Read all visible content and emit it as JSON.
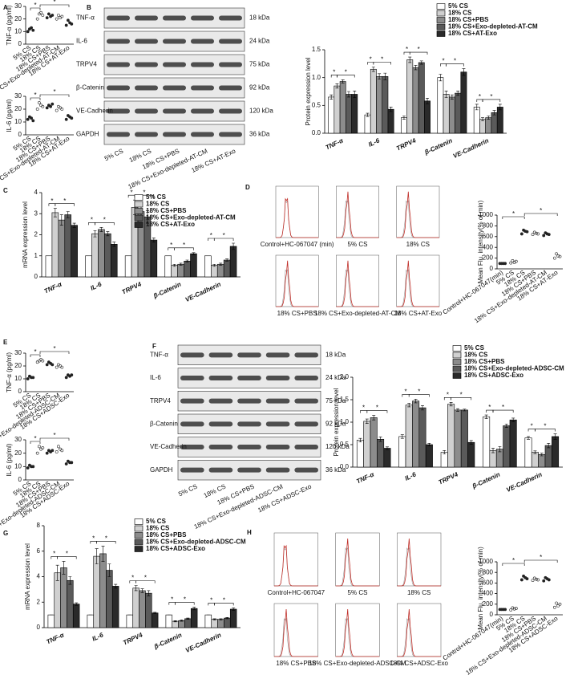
{
  "chart_data": [
    {
      "type": "dot",
      "panel": "A",
      "y_label": "TNF-α (pg/ml)",
      "categories": [
        "5% CS",
        "18% CS",
        "18% CS+PBS",
        "18% CS+Exo-depleted-AT-CM",
        "18% CS+AT-Exo"
      ],
      "points": [
        [
          10,
          12,
          13,
          11
        ],
        [
          20,
          24,
          25,
          23
        ],
        [
          21,
          24,
          22,
          23
        ],
        [
          20,
          23,
          21,
          22
        ],
        [
          15,
          19,
          17,
          16
        ]
      ],
      "color": "#222222",
      "ylim": [
        0,
        30
      ],
      "yticks": [
        0,
        10,
        20,
        30
      ],
      "significance": "*"
    },
    {
      "type": "dot",
      "y_label": "IL-6 (pg/ml)",
      "categories": [
        "5% CS",
        "18% CS",
        "18% CS+PBS",
        "18% CS+Exo-depleted-AT-CM",
        "18% CS+AT-Exo"
      ],
      "points": [
        [
          12,
          14,
          13,
          11
        ],
        [
          20,
          25,
          23,
          22
        ],
        [
          21,
          23,
          22,
          24
        ],
        [
          19,
          22,
          21,
          20
        ],
        [
          12,
          15,
          14,
          13
        ]
      ],
      "color": "#222222",
      "ylim": [
        0,
        30
      ],
      "yticks": [
        0,
        10,
        20,
        30
      ],
      "significance": "*"
    },
    {
      "type": "blot",
      "panel": "B",
      "rows": [
        {
          "name": "TNF-α",
          "kda": "18 kDa"
        },
        {
          "name": "IL-6",
          "kda": "24 kDa"
        },
        {
          "name": "TRPV4",
          "kda": "75 kDa"
        },
        {
          "name": "β-Catenin",
          "kda": "92 kDa"
        },
        {
          "name": "VE-Cadherin",
          "kda": "120 kDa"
        },
        {
          "name": "GAPDH",
          "kda": "36 kDa"
        }
      ],
      "lanes": [
        "5% CS",
        "18% CS",
        "18% CS+PBS",
        "18% CS+Exo-depleted-AT-CM",
        "18% CS+AT-Exo"
      ]
    },
    {
      "type": "bar",
      "y_label": "Protein expression level",
      "categories": [
        "TNF-α",
        "IL-6",
        "TRPV4",
        "β-Catenin",
        "VE-Cadherin"
      ],
      "series": [
        {
          "name": "5% CS",
          "color": "#ffffff",
          "values": [
            0.65,
            0.33,
            0.28,
            1.0,
            0.47
          ],
          "errors": [
            0.04,
            0.03,
            0.03,
            0.06,
            0.05
          ]
        },
        {
          "name": "18% CS",
          "color": "#d0d0d0",
          "values": [
            0.85,
            1.15,
            1.32,
            0.7,
            0.25
          ],
          "errors": [
            0.04,
            0.04,
            0.05,
            0.06,
            0.03
          ]
        },
        {
          "name": "18% CS+PBS",
          "color": "#8c8c8c",
          "values": [
            0.93,
            1.02,
            1.18,
            0.65,
            0.28
          ],
          "errors": [
            0.03,
            0.05,
            0.04,
            0.04,
            0.03
          ]
        },
        {
          "name": "18% CS+Exo-depleted-AT-CM",
          "color": "#5a5a5a",
          "values": [
            0.7,
            1.02,
            1.27,
            0.72,
            0.37
          ],
          "errors": [
            0.05,
            0.06,
            0.03,
            0.04,
            0.04
          ]
        },
        {
          "name": "18% CS+AT-Exo",
          "color": "#2a2a2a",
          "values": [
            0.7,
            0.43,
            0.58,
            1.1,
            0.47
          ],
          "errors": [
            0.06,
            0.04,
            0.05,
            0.06,
            0.05
          ]
        }
      ],
      "ylim": [
        0,
        1.5
      ],
      "yticks": [
        {
          "value": 0,
          "label": "0.0"
        },
        {
          "value": 0.5,
          "label": "0.5"
        },
        {
          "value": 1,
          "label": "1.0"
        },
        {
          "value": 1.5,
          "label": "1.5"
        }
      ],
      "significance": "*"
    },
    {
      "type": "bar",
      "panel": "C",
      "y_label": "mRNA expression level",
      "categories": [
        "TNF-α",
        "IL-6",
        "TRPV4",
        "β-Catenin",
        "VE-Cadherin"
      ],
      "series": [
        {
          "name": "5% CS",
          "color": "#ffffff",
          "values": [
            1,
            1,
            1,
            1,
            1
          ],
          "errors": [
            0,
            0,
            0,
            0,
            0
          ]
        },
        {
          "name": "18% CS",
          "color": "#d0d0d0",
          "values": [
            3.05,
            2.05,
            3.3,
            0.55,
            0.55
          ],
          "errors": [
            0.2,
            0.15,
            0.35,
            0.05,
            0.05
          ]
        },
        {
          "name": "18% CS+PBS",
          "color": "#8c8c8c",
          "values": [
            2.7,
            2.25,
            3.1,
            0.6,
            0.6
          ],
          "errors": [
            0.25,
            0.1,
            0.3,
            0.05,
            0.05
          ]
        },
        {
          "name": "18% CS+Exo-depleted-AT-CM",
          "color": "#5a5a5a",
          "values": [
            2.95,
            2.05,
            2.85,
            0.75,
            0.8
          ],
          "errors": [
            0.15,
            0.1,
            0.3,
            0.05,
            0.05
          ]
        },
        {
          "name": "18% CS+AT-Exo",
          "color": "#2a2a2a",
          "values": [
            2.45,
            1.55,
            1.75,
            1.1,
            1.45
          ],
          "errors": [
            0.1,
            0.1,
            0.1,
            0.05,
            0.15
          ]
        }
      ],
      "ylim": [
        0,
        4
      ],
      "yticks": [
        0,
        1,
        2,
        3,
        4
      ],
      "significance": "*"
    },
    {
      "type": "flow",
      "panel": "D",
      "labels": [
        "Control+HC-067047 (min)",
        "5% CS",
        "18% CS",
        "18% CS+PBS",
        "18% CS+Exo-depleted-AT-CM",
        "18% CS+AT-Exo"
      ]
    },
    {
      "type": "dot",
      "y_label": "Mean Flu. intensity(% of min)",
      "categories": [
        "Control+HC-067047(min)",
        "5% CS",
        "18% CS",
        "18% CS+PBS",
        "18% CS+Exo-depleted-AT-CM",
        "18% CS+AT-Exo"
      ],
      "points": [
        [
          100,
          100,
          100,
          100
        ],
        [
          110,
          150,
          120,
          140
        ],
        [
          650,
          720,
          700,
          690
        ],
        [
          640,
          680,
          660,
          650
        ],
        [
          620,
          670,
          650,
          640
        ],
        [
          200,
          280,
          240,
          230
        ]
      ],
      "color": "#222222",
      "ylim": [
        0,
        1000
      ],
      "yticks": [
        0,
        200,
        400,
        600,
        800,
        1000
      ],
      "significance": "*"
    },
    {
      "type": "dot",
      "panel": "E",
      "y_label": "TNF-α (pg/ml)",
      "categories": [
        "5% CS",
        "18% CS",
        "18% CS+PBS",
        "18% CS+Exo-depleted-ADSC-CM",
        "18% CS+ADSC-Exo"
      ],
      "points": [
        [
          10,
          12,
          11,
          11
        ],
        [
          23,
          24,
          25,
          24
        ],
        [
          21,
          23,
          22,
          21
        ],
        [
          19,
          21,
          20,
          19
        ],
        [
          11,
          13,
          12,
          13
        ]
      ],
      "color": "#222222",
      "ylim": [
        0,
        30
      ],
      "yticks": [
        0,
        10,
        20,
        30
      ],
      "significance": "*"
    },
    {
      "type": "dot",
      "y_label": "IL-6 (pg/ml)",
      "categories": [
        "5% CS",
        "18% CS",
        "18% CS+PBS",
        "18% CS+Exo-depleted-ADSC-CM",
        "18% CS+ADSC-Exo"
      ],
      "points": [
        [
          9,
          11,
          10,
          10
        ],
        [
          20,
          25,
          23,
          24
        ],
        [
          20,
          22,
          21,
          22
        ],
        [
          21,
          25,
          23,
          22
        ],
        [
          12,
          14,
          13,
          13
        ]
      ],
      "color": "#222222",
      "ylim": [
        0,
        30
      ],
      "yticks": [
        0,
        10,
        20,
        30
      ],
      "significance": "*"
    },
    {
      "type": "blot",
      "panel": "F",
      "rows": [
        {
          "name": "TNF-α",
          "kda": "18 kDa"
        },
        {
          "name": "IL-6",
          "kda": "24 kDa"
        },
        {
          "name": "TRPV4",
          "kda": "75 kDa"
        },
        {
          "name": "β-Catenin",
          "kda": "92 kDa"
        },
        {
          "name": "VE-Cadherin",
          "kda": "120 kDa"
        },
        {
          "name": "GAPDH",
          "kda": "36 kDa"
        }
      ],
      "lanes": [
        "5% CS",
        "18% CS",
        "18% CS+PBS",
        "18% CS+Exo-depleted-ADSC-CM",
        "18% CS+ADSC-Exo"
      ]
    },
    {
      "type": "bar",
      "y_label": "Protein expression level",
      "categories": [
        "TNF-α",
        "IL-6",
        "TRPV4",
        "β-Catenin",
        "VE-Cadherin"
      ],
      "series": [
        {
          "name": "5% CS",
          "color": "#ffffff",
          "values": [
            0.6,
            0.68,
            0.33,
            1.12,
            0.65
          ],
          "errors": [
            0.04,
            0.04,
            0.04,
            0.04,
            0.03
          ]
        },
        {
          "name": "18% CS",
          "color": "#d0d0d0",
          "values": [
            1.02,
            1.38,
            1.4,
            0.37,
            0.33
          ],
          "errors": [
            0.05,
            0.04,
            0.04,
            0.05,
            0.03
          ]
        },
        {
          "name": "18% CS+PBS",
          "color": "#8c8c8c",
          "values": [
            1.1,
            1.47,
            1.27,
            0.4,
            0.28
          ],
          "errors": [
            0.05,
            0.04,
            0.03,
            0.06,
            0.03
          ]
        },
        {
          "name": "18% CS+Exo-depleted-ADSC-CM",
          "color": "#5a5a5a",
          "values": [
            0.62,
            1.32,
            1.27,
            0.92,
            0.48
          ],
          "errors": [
            0.05,
            0.05,
            0.02,
            0.04,
            0.05
          ]
        },
        {
          "name": "18% CS+ADSC-Exo",
          "color": "#2a2a2a",
          "values": [
            0.42,
            0.5,
            0.55,
            1.05,
            0.68
          ],
          "errors": [
            0.03,
            0.03,
            0.04,
            0.04,
            0.06
          ]
        }
      ],
      "ylim": [
        0,
        2
      ],
      "yticks": [
        {
          "value": 0,
          "label": "0.0"
        },
        {
          "value": 0.5,
          "label": "0.5"
        },
        {
          "value": 1,
          "label": "1.0"
        },
        {
          "value": 1.5,
          "label": "1.5"
        },
        {
          "value": 2,
          "label": "2.0"
        }
      ],
      "significance": "*"
    },
    {
      "type": "bar",
      "panel": "G",
      "y_label": "mRNA expression level",
      "categories": [
        "TNF-α",
        "IL-6",
        "TRPV4",
        "β-Catenin",
        "VE-Cadherin"
      ],
      "series": [
        {
          "name": "5% CS",
          "color": "#ffffff",
          "values": [
            1,
            1,
            1,
            1,
            1
          ],
          "errors": [
            0,
            0,
            0,
            0,
            0
          ]
        },
        {
          "name": "18% CS",
          "color": "#d0d0d0",
          "values": [
            4.3,
            5.6,
            3.1,
            0.5,
            0.65
          ],
          "errors": [
            0.6,
            0.6,
            0.2,
            0.05,
            0.05
          ]
        },
        {
          "name": "18% CS+PBS",
          "color": "#8c8c8c",
          "values": [
            4.7,
            5.8,
            2.9,
            0.55,
            0.65
          ],
          "errors": [
            0.5,
            0.6,
            0.15,
            0.05,
            0.05
          ]
        },
        {
          "name": "18% CS+Exo-depleted-ADSC-CM",
          "color": "#5a5a5a",
          "values": [
            3.7,
            4.5,
            2.7,
            0.7,
            0.75
          ],
          "errors": [
            0.3,
            0.5,
            0.2,
            0.05,
            0.05
          ]
        },
        {
          "name": "18% CS+ADSC-Exo",
          "color": "#2a2a2a",
          "values": [
            1.85,
            3.25,
            1.15,
            1.5,
            1.45
          ],
          "errors": [
            0.1,
            0.15,
            0.05,
            0.1,
            0.1
          ]
        }
      ],
      "ylim": [
        0,
        8
      ],
      "yticks": [
        0,
        2,
        4,
        6,
        8
      ],
      "significance": "*"
    },
    {
      "type": "flow",
      "panel": "H",
      "labels": [
        "Control+HC-067047",
        "5% CS",
        "18% CS",
        "18% CS+PBS",
        "18% CS+Exo-depleted-ADSC-CM",
        "18% CS+ADSC-Exo"
      ]
    },
    {
      "type": "dot",
      "y_label": "Mean Flu. intensity(% of min)",
      "categories": [
        "Control+HC-067047(min)",
        "5% CS",
        "18% CS",
        "18% CS+PBS",
        "18% CS+Exo-depleted-ADSC-CM",
        "18% CS+ADSC-Exo"
      ],
      "points": [
        [
          100,
          100,
          100,
          100
        ],
        [
          90,
          130,
          110,
          120
        ],
        [
          660,
          730,
          700,
          680
        ],
        [
          650,
          690,
          670,
          660
        ],
        [
          640,
          700,
          680,
          660
        ],
        [
          140,
          220,
          170,
          200
        ]
      ],
      "color": "#222222",
      "ylim": [
        0,
        1000
      ],
      "yticks": [
        0,
        200,
        400,
        600,
        800,
        1000
      ],
      "significance": "*"
    }
  ]
}
